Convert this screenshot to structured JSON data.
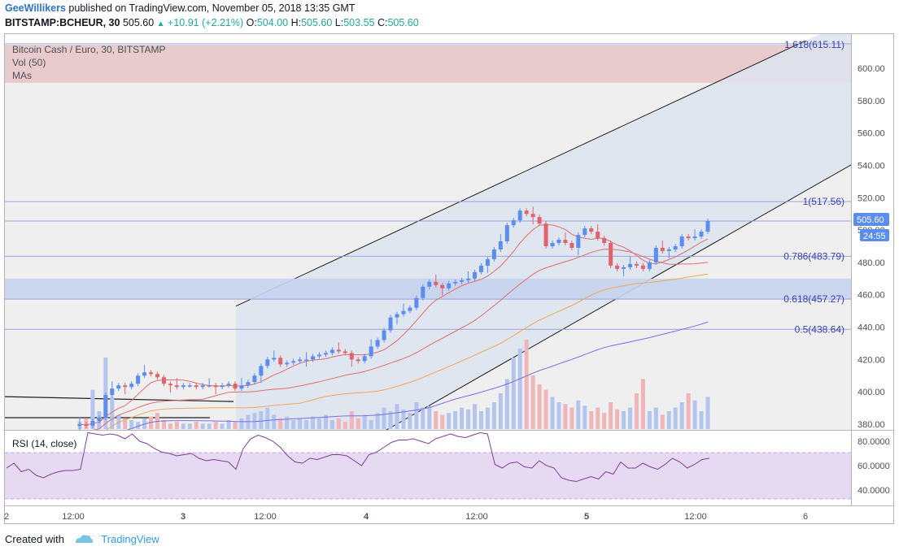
{
  "header": {
    "author": "GeeWillikers",
    "published": "published on TradingView.com, November 05, 2018 13:35 GMT",
    "symbol": "BITSTAMP:BCHEUR, 30",
    "last": "505.60",
    "change": "+10.91 (+2.21%)",
    "o_label": "O:",
    "o_value": "504.00",
    "h_label": "H:",
    "h_value": "505.60",
    "l_label": "L:",
    "l_value": "503.55",
    "c_label": "C:",
    "c_value": "505.60"
  },
  "legend": {
    "title": "Bitcoin Cash / Euro, 30, BITSTAMP",
    "vol": "Vol (50)",
    "mas": "MAs"
  },
  "price_badge": {
    "price": "505.60",
    "countdown": "24:55"
  },
  "fib_labels": [
    {
      "text": "1.618(615.11)",
      "value": 615.11
    },
    {
      "text": "1(517.56)",
      "value": 517.56
    },
    {
      "text": "0.786(483.79)",
      "value": 483.79
    },
    {
      "text": "0.618(457.27)",
      "value": 457.27
    },
    {
      "text": "0.5(438.64)",
      "value": 438.64
    }
  ],
  "rsi": {
    "label": "RSI (14, close)",
    "ticks": [
      "80.0000",
      "60.0000",
      "40.0000"
    ],
    "tick_values": [
      80,
      60,
      40
    ]
  },
  "footer": {
    "created": "Created with",
    "brand": "TradingView"
  },
  "colors": {
    "up": "#5b8def",
    "down": "#e0636b",
    "channel": "#dde4ef",
    "fib_top": "#e8c6c9",
    "rsi_band": "#e6d9f2",
    "rsi_line": "#7e3f98",
    "ma_short": "#e06c6c",
    "ma_mid": "#f0a75a",
    "ma_long": "#7a6ee8"
  },
  "chart_data": {
    "type": "candlestick",
    "price_axis": {
      "ticks": [
        600,
        580,
        560,
        540,
        520,
        500,
        480,
        460,
        440,
        420,
        400,
        380
      ],
      "labels": [
        "600.00",
        "580.00",
        "560.00",
        "540.00",
        "520.00",
        "500.00",
        "480.00",
        "460.00",
        "440.00",
        "420.00",
        "400.00",
        "380.00"
      ]
    },
    "time_axis": {
      "labels": [
        "2",
        "12:00",
        "3",
        "12:00",
        "4",
        "12:00",
        "5",
        "12:00",
        "6"
      ],
      "bold": [
        "3",
        "4",
        "5"
      ]
    },
    "close_series": [
      380,
      379,
      382,
      384,
      398,
      402,
      404,
      403,
      405,
      410,
      412,
      411,
      409,
      405,
      404,
      403,
      404,
      404,
      403,
      404,
      404,
      403,
      404,
      405,
      402,
      404,
      406,
      410,
      416,
      420,
      421,
      417,
      418,
      419,
      420,
      420,
      422,
      423,
      424,
      426,
      425,
      424,
      420,
      419,
      422,
      428,
      432,
      438,
      446,
      448,
      450,
      452,
      458,
      465,
      468,
      466,
      464,
      467,
      468,
      469,
      470,
      474,
      478,
      482,
      488,
      493,
      503,
      506,
      512,
      510,
      508,
      504,
      490,
      492,
      494,
      492,
      489,
      497,
      501,
      499,
      495,
      492,
      478,
      476,
      477,
      479,
      478,
      476,
      480,
      489,
      487,
      488,
      490,
      496,
      495,
      496,
      499,
      505.6
    ],
    "rsi_series": [
      58,
      62,
      55,
      57,
      52,
      50,
      53,
      55,
      56,
      56,
      57,
      87,
      86,
      85,
      86,
      85,
      82,
      86,
      80,
      78,
      74,
      71,
      70,
      68,
      69,
      70,
      66,
      64,
      65,
      64,
      63,
      57,
      74,
      82,
      85,
      83,
      80,
      75,
      68,
      63,
      62,
      66,
      65,
      67,
      69,
      69,
      68,
      64,
      60,
      69,
      71,
      75,
      79,
      81,
      81,
      82,
      80,
      78,
      82,
      84,
      86,
      84,
      83,
      85,
      87,
      86,
      61,
      58,
      62,
      63,
      59,
      58,
      64,
      60,
      58,
      50,
      48,
      47,
      49,
      51,
      49,
      55,
      53,
      63,
      58,
      58,
      62,
      59,
      57,
      61,
      66,
      63,
      58,
      61,
      65,
      66
    ],
    "channel_upper": [
      [
        290,
        453
      ],
      [
        990,
        617
      ]
    ],
    "channel_lower": [
      [
        470,
        375
      ],
      [
        1045,
        540
      ]
    ],
    "fib_range": [
      457.27,
      615.11
    ]
  }
}
